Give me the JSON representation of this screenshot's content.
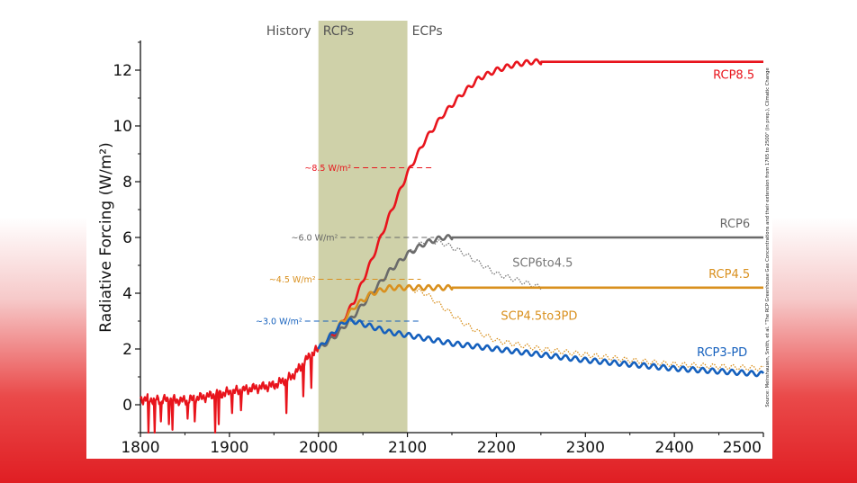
{
  "chart_data": {
    "type": "line",
    "ylabel": "Radiative Forcing (W/m²)",
    "xlim": [
      1800,
      2500
    ],
    "ylim": [
      -1,
      13
    ],
    "x_ticks": [
      1800,
      1900,
      2000,
      2100,
      2200,
      2300,
      2400,
      2500
    ],
    "y_ticks": [
      0,
      2,
      4,
      6,
      8,
      10,
      12
    ],
    "periods": [
      {
        "label": "History",
        "from": 1800,
        "to": 2000,
        "highlight": false
      },
      {
        "label": "RCPs",
        "from": 2000,
        "to": 2100,
        "highlight": true,
        "color": "#cfd1a9"
      },
      {
        "label": "ECPs",
        "from": 2100,
        "to": 2500,
        "highlight": false
      }
    ],
    "levels": [
      {
        "label": "~8.5 W/m²",
        "value": 8.5,
        "color": "#e8141c"
      },
      {
        "label": "~6.0 W/m²",
        "value": 6.0,
        "color": "#666666"
      },
      {
        "label": "~4.5 W/m²",
        "value": 4.5,
        "color": "#d9901e"
      },
      {
        "label": "~3.0 W/m²",
        "value": 3.0,
        "color": "#1560bd"
      }
    ],
    "history": {
      "color": "#e8141c",
      "x": [
        1800,
        1850,
        1900,
        1930,
        1950,
        1960,
        1970,
        1980,
        1990,
        2000
      ],
      "y": [
        0.2,
        0.15,
        0.45,
        0.6,
        0.7,
        0.85,
        1.0,
        1.35,
        1.75,
        2.0
      ]
    },
    "series": [
      {
        "name": "RCP8.5",
        "color": "#e8141c",
        "style": "solid",
        "wave": true,
        "x": [
          2000,
          2020,
          2040,
          2060,
          2080,
          2100,
          2120,
          2140,
          2160,
          2180,
          2200,
          2220,
          2240,
          2250,
          2500
        ],
        "y": [
          2.0,
          2.6,
          3.7,
          5.2,
          6.8,
          8.3,
          9.5,
          10.4,
          11.1,
          11.7,
          12.0,
          12.2,
          12.3,
          12.3,
          12.3
        ]
      },
      {
        "name": "RCP6",
        "color": "#6a6a6a",
        "style": "solid",
        "wave": true,
        "x": [
          2000,
          2020,
          2040,
          2060,
          2080,
          2100,
          2120,
          2140,
          2150,
          2500
        ],
        "y": [
          2.0,
          2.5,
          3.2,
          4.0,
          4.8,
          5.4,
          5.8,
          6.0,
          6.0,
          6.0
        ]
      },
      {
        "name": "SCP6to4.5",
        "color": "#777777",
        "style": "dotted",
        "wave": true,
        "x": [
          2100,
          2120,
          2140,
          2160,
          2180,
          2200,
          2220,
          2240,
          2250
        ],
        "y": [
          5.4,
          5.9,
          5.8,
          5.5,
          5.1,
          4.7,
          4.5,
          4.3,
          4.2
        ]
      },
      {
        "name": "RCP4.5",
        "color": "#d9901e",
        "style": "solid",
        "wave": true,
        "x": [
          2000,
          2020,
          2040,
          2060,
          2080,
          2100,
          2120,
          2150,
          2500
        ],
        "y": [
          2.0,
          2.7,
          3.5,
          4.0,
          4.2,
          4.2,
          4.2,
          4.2,
          4.2
        ]
      },
      {
        "name": "SCP4.5to3PD",
        "color": "#d9901e",
        "style": "dotted",
        "wave": true,
        "x": [
          2100,
          2120,
          2140,
          2160,
          2180,
          2200,
          2250,
          2300,
          2350,
          2400,
          2500
        ],
        "y": [
          4.2,
          4.0,
          3.5,
          3.0,
          2.6,
          2.3,
          2.0,
          1.8,
          1.6,
          1.45,
          1.3
        ]
      },
      {
        "name": "RCP3-PD",
        "color": "#1560bd",
        "style": "solid",
        "wave": true,
        "x": [
          2000,
          2020,
          2030,
          2040,
          2060,
          2080,
          2100,
          2150,
          2200,
          2250,
          2300,
          2350,
          2400,
          2450,
          2500
        ],
        "y": [
          2.0,
          2.7,
          3.0,
          3.0,
          2.8,
          2.6,
          2.5,
          2.2,
          2.0,
          1.8,
          1.6,
          1.45,
          1.3,
          1.2,
          1.1
        ]
      }
    ],
    "source": "Source: Meinshausen, Smith, et al. \"The RCP Greenhouse Gas Concentrations and their extension from 1765 to 2500\" (in prep.), Climatic Change"
  }
}
